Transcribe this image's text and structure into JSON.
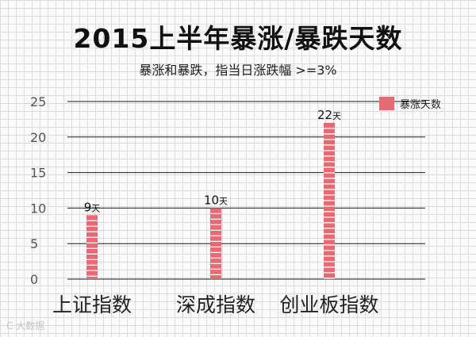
{
  "chart_data": {
    "type": "bar",
    "title": "2015上半年暴涨/暴跌天数",
    "subtitle": "暴涨和暴跌，指当日涨跌幅 >=3%",
    "categories": [
      "上证指数",
      "深成指数",
      "创业板指数"
    ],
    "series": [
      {
        "name": "暴涨天数",
        "values": [
          9,
          10,
          22
        ],
        "color": "#e66a72"
      }
    ],
    "data_labels": [
      "9天",
      "10天",
      "22天"
    ],
    "yticks": [
      "0",
      "5",
      "10",
      "15",
      "20",
      "25"
    ],
    "ylim": [
      0,
      25
    ],
    "grid": true,
    "legend_position": "top-right"
  },
  "watermark": "C 大数据"
}
